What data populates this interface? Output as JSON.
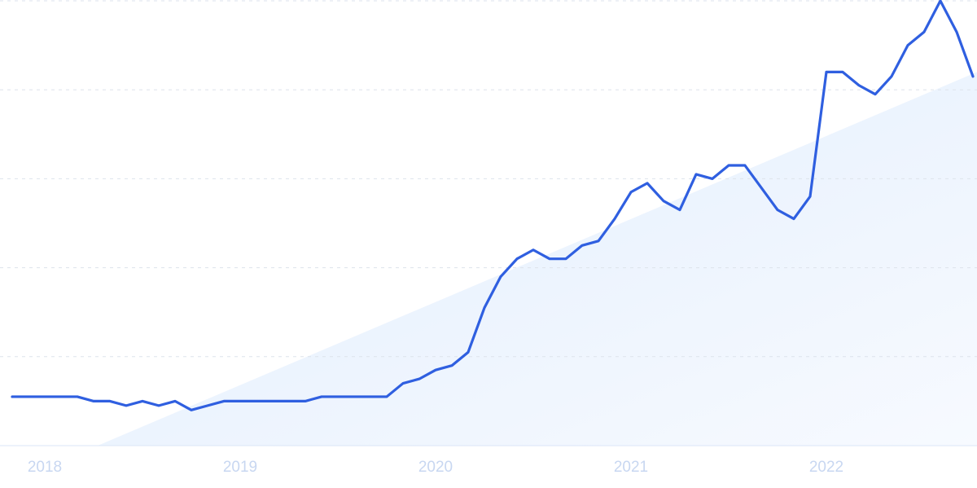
{
  "chart_data": {
    "type": "line",
    "categories": [
      null,
      null,
      "2018",
      null,
      null,
      null,
      null,
      null,
      null,
      null,
      null,
      null,
      null,
      null,
      "2019",
      null,
      null,
      null,
      null,
      null,
      null,
      null,
      null,
      null,
      null,
      null,
      "2020",
      null,
      null,
      null,
      null,
      null,
      null,
      null,
      null,
      null,
      null,
      null,
      "2021",
      null,
      null,
      null,
      null,
      null,
      null,
      null,
      null,
      null,
      null,
      null,
      "2022",
      null,
      null,
      null,
      null,
      null,
      null,
      null,
      null,
      null
    ],
    "values": [
      11,
      11,
      11,
      11,
      11,
      10,
      10,
      9,
      10,
      9,
      10,
      8,
      9,
      10,
      10,
      10,
      10,
      10,
      10,
      11,
      11,
      11,
      11,
      11,
      14,
      15,
      17,
      18,
      21,
      31,
      38,
      42,
      44,
      42,
      42,
      45,
      46,
      51,
      57,
      59,
      55,
      53,
      61,
      60,
      63,
      63,
      58,
      53,
      51,
      56,
      84,
      84,
      81,
      79,
      83,
      90,
      93,
      100,
      93,
      83
    ],
    "color": "#2f5fe0",
    "trend": {
      "x": [
        5.25,
        59.25
      ],
      "values": [
        0,
        84
      ],
      "color": "#e3eefc"
    },
    "ylim": [
      0,
      100
    ],
    "yticks": [
      0,
      20,
      40,
      60,
      80,
      100
    ],
    "grid": true
  }
}
